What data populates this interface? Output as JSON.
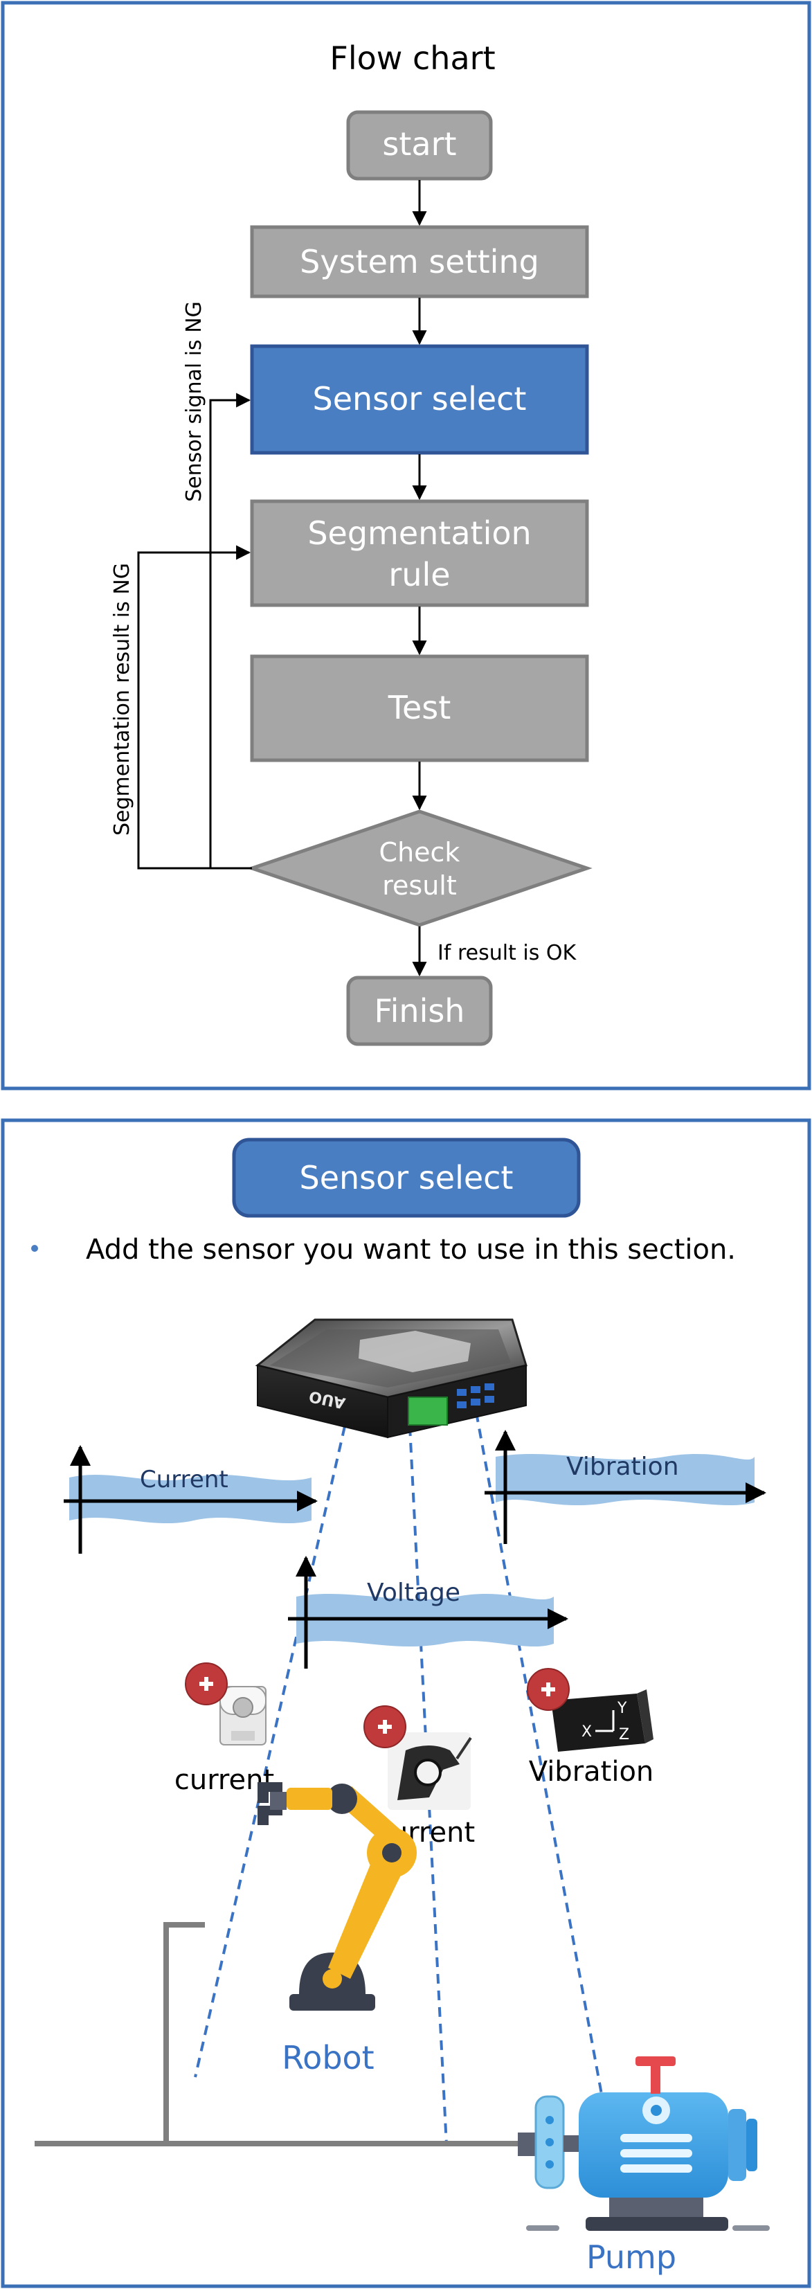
{
  "panel1": {
    "title": "Flow chart",
    "nodes": {
      "start": "start",
      "system_setting": "System setting",
      "sensor_select": "Sensor select",
      "segmentation_rule_line1": "Segmentation",
      "segmentation_rule_line2": "rule",
      "test": "Test",
      "check_line1": "Check",
      "check_line2": "result",
      "finish": "Finish"
    },
    "edge_labels": {
      "sensor_ng": "Sensor signal is NG",
      "segmentation_ng": "Segmentation result is NG",
      "result_ok": "If result is OK"
    }
  },
  "panel2": {
    "title": "Sensor select",
    "bullet": "Add the sensor you want to use in this section.",
    "device_brand": "AUO",
    "signals": {
      "current": "Current",
      "voltage": "Voltage",
      "vibration": "Vibration"
    },
    "sensors": {
      "current_clamp": "current",
      "current_ct": "current",
      "vibration": "Vibration"
    },
    "vibration_axes": {
      "x": "X",
      "y": "Y",
      "z": "Z"
    },
    "machines": {
      "robot": "Robot",
      "pump": "Pump"
    }
  },
  "colors": {
    "panel_border": "#3b6fb6",
    "node_gray": "#a6a6a6",
    "node_gray_border": "#7f7f7f",
    "node_blue": "#4a7ec2",
    "node_blue_border": "#2f5597",
    "wave_blue": "#9dc3e6",
    "plus_red": "#c0393b",
    "label_blue": "#3b73c4"
  }
}
